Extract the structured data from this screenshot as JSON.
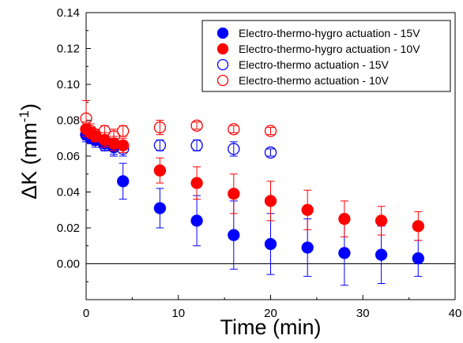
{
  "chart_data": {
    "type": "scatter",
    "xlabel": "Time (min)",
    "ylabel_main": "ΔK (mm",
    "ylabel_sup": "-1",
    "ylabel_tail": ")",
    "xlim": [
      0,
      40
    ],
    "ylim": [
      -0.02,
      0.14
    ],
    "x_ticks": [
      0,
      10,
      20,
      30,
      40
    ],
    "x_tick_labels": [
      "0",
      "10",
      "20",
      "30",
      "40"
    ],
    "y_ticks": [
      0.0,
      0.02,
      0.04,
      0.06,
      0.08,
      0.1,
      0.12,
      0.14
    ],
    "y_tick_labels": [
      "0.00",
      "0.02",
      "0.04",
      "0.06",
      "0.08",
      "0.10",
      "0.12",
      "0.14"
    ],
    "zero_line": true,
    "grid": false,
    "legend_position": "top-right",
    "series": [
      {
        "name": "Electro-thermo-hygro actuation - 15V",
        "color": "#0000ff",
        "filled": true,
        "points": [
          {
            "x": 0,
            "y": 0.072,
            "err": 0.004
          },
          {
            "x": 0.5,
            "y": 0.07,
            "err": 0.003
          },
          {
            "x": 1,
            "y": 0.069,
            "err": 0.004
          },
          {
            "x": 2,
            "y": 0.067,
            "err": 0.004
          },
          {
            "x": 3,
            "y": 0.065,
            "err": 0.005
          },
          {
            "x": 4,
            "y": 0.046,
            "err": 0.01
          },
          {
            "x": 8,
            "y": 0.031,
            "err": 0.011
          },
          {
            "x": 12,
            "y": 0.024,
            "err": 0.014
          },
          {
            "x": 16,
            "y": 0.016,
            "err": 0.019
          },
          {
            "x": 20,
            "y": 0.011,
            "err": 0.017
          },
          {
            "x": 24,
            "y": 0.009,
            "err": 0.016
          },
          {
            "x": 28,
            "y": 0.006,
            "err": 0.018
          },
          {
            "x": 32,
            "y": 0.005,
            "err": 0.016
          },
          {
            "x": 36,
            "y": 0.003,
            "err": 0.01
          }
        ]
      },
      {
        "name": "Electro-thermo-hygro actuation - 10V",
        "color": "#ff0000",
        "filled": true,
        "points": [
          {
            "x": 0,
            "y": 0.075,
            "err": 0.004
          },
          {
            "x": 0.5,
            "y": 0.073,
            "err": 0.003
          },
          {
            "x": 1,
            "y": 0.071,
            "err": 0.003
          },
          {
            "x": 2,
            "y": 0.069,
            "err": 0.004
          },
          {
            "x": 3,
            "y": 0.067,
            "err": 0.004
          },
          {
            "x": 4,
            "y": 0.066,
            "err": 0.004
          },
          {
            "x": 8,
            "y": 0.052,
            "err": 0.007
          },
          {
            "x": 12,
            "y": 0.045,
            "err": 0.009
          },
          {
            "x": 16,
            "y": 0.039,
            "err": 0.011
          },
          {
            "x": 20,
            "y": 0.035,
            "err": 0.011
          },
          {
            "x": 24,
            "y": 0.03,
            "err": 0.011
          },
          {
            "x": 28,
            "y": 0.025,
            "err": 0.01
          },
          {
            "x": 32,
            "y": 0.024,
            "err": 0.008
          },
          {
            "x": 36,
            "y": 0.021,
            "err": 0.008
          }
        ]
      },
      {
        "name": "Electro-thermo actuation - 15V",
        "color": "#0000ff",
        "filled": false,
        "points": [
          {
            "x": 0,
            "y": 0.072,
            "err": 0.003
          },
          {
            "x": 0.5,
            "y": 0.07,
            "err": 0.003
          },
          {
            "x": 1,
            "y": 0.069,
            "err": 0.003
          },
          {
            "x": 2,
            "y": 0.066,
            "err": 0.003
          },
          {
            "x": 3,
            "y": 0.065,
            "err": 0.004
          },
          {
            "x": 4,
            "y": 0.064,
            "err": 0.004
          },
          {
            "x": 8,
            "y": 0.066,
            "err": 0.003
          },
          {
            "x": 12,
            "y": 0.066,
            "err": 0.003
          },
          {
            "x": 16,
            "y": 0.064,
            "err": 0.004
          },
          {
            "x": 20,
            "y": 0.062,
            "err": 0.002
          }
        ]
      },
      {
        "name": "Electro-thermo actuation - 10V",
        "color": "#ff0000",
        "filled": false,
        "points": [
          {
            "x": 0,
            "y": 0.081,
            "err": 0.01
          },
          {
            "x": 0.5,
            "y": 0.074,
            "err": 0.004
          },
          {
            "x": 1,
            "y": 0.072,
            "err": 0.003
          },
          {
            "x": 2,
            "y": 0.074,
            "err": 0.003
          },
          {
            "x": 3,
            "y": 0.071,
            "err": 0.004
          },
          {
            "x": 4,
            "y": 0.074,
            "err": 0.003
          },
          {
            "x": 8,
            "y": 0.076,
            "err": 0.004
          },
          {
            "x": 12,
            "y": 0.077,
            "err": 0.002
          },
          {
            "x": 16,
            "y": 0.075,
            "err": 0.002
          },
          {
            "x": 20,
            "y": 0.074,
            "err": 0.002
          }
        ]
      }
    ]
  }
}
